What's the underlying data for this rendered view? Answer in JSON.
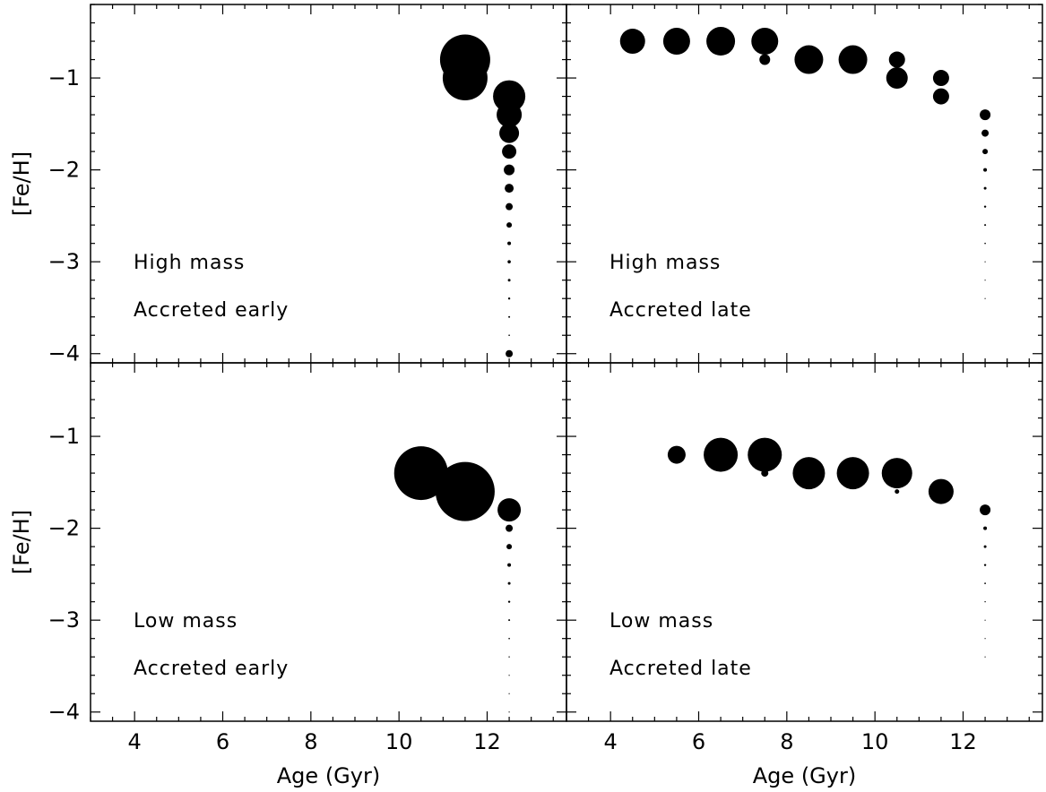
{
  "chart_data": [
    {
      "type": "scatter",
      "panel": "top-left",
      "annotations": [
        "High mass",
        "Accreted early"
      ],
      "xlabel": "",
      "ylabel": "[Fe/H]",
      "xlim": [
        3,
        13.8
      ],
      "ylim": [
        -4.1,
        -0.2
      ],
      "xticks": [
        4,
        6,
        8,
        10,
        12
      ],
      "yticks": [
        -1,
        -2,
        -3,
        -4
      ],
      "points": [
        {
          "x": 11.5,
          "y": -0.8,
          "size": 28
        },
        {
          "x": 11.5,
          "y": -1.0,
          "size": 25
        },
        {
          "x": 12.5,
          "y": -1.2,
          "size": 18
        },
        {
          "x": 12.5,
          "y": -1.4,
          "size": 14
        },
        {
          "x": 12.5,
          "y": -1.6,
          "size": 11
        },
        {
          "x": 12.5,
          "y": -1.8,
          "size": 8
        },
        {
          "x": 12.5,
          "y": -2.0,
          "size": 6
        },
        {
          "x": 12.5,
          "y": -2.2,
          "size": 5
        },
        {
          "x": 12.5,
          "y": -2.4,
          "size": 4
        },
        {
          "x": 12.5,
          "y": -2.6,
          "size": 3
        },
        {
          "x": 12.5,
          "y": -2.8,
          "size": 2
        },
        {
          "x": 12.5,
          "y": -3.0,
          "size": 1.8
        },
        {
          "x": 12.5,
          "y": -3.2,
          "size": 1.5
        },
        {
          "x": 12.5,
          "y": -3.4,
          "size": 1.2
        },
        {
          "x": 12.5,
          "y": -3.6,
          "size": 1
        },
        {
          "x": 12.5,
          "y": -3.8,
          "size": 0.8
        },
        {
          "x": 12.5,
          "y": -4.0,
          "size": 4
        }
      ]
    },
    {
      "type": "scatter",
      "panel": "top-right",
      "annotations": [
        "High mass",
        "Accreted late"
      ],
      "xlabel": "",
      "ylabel": "",
      "xlim": [
        3,
        13.8
      ],
      "ylim": [
        -4.1,
        -0.2
      ],
      "xticks": [
        4,
        6,
        8,
        10,
        12
      ],
      "yticks": [
        -1,
        -2,
        -3,
        -4
      ],
      "points": [
        {
          "x": 4.5,
          "y": -0.6,
          "size": 14
        },
        {
          "x": 5.5,
          "y": -0.6,
          "size": 15
        },
        {
          "x": 6.5,
          "y": -0.6,
          "size": 16
        },
        {
          "x": 7.5,
          "y": -0.6,
          "size": 15
        },
        {
          "x": 7.5,
          "y": -0.8,
          "size": 6
        },
        {
          "x": 8.5,
          "y": -0.8,
          "size": 16
        },
        {
          "x": 9.5,
          "y": -0.8,
          "size": 16
        },
        {
          "x": 10.5,
          "y": -0.8,
          "size": 9
        },
        {
          "x": 10.5,
          "y": -1.0,
          "size": 12
        },
        {
          "x": 11.5,
          "y": -1.0,
          "size": 9
        },
        {
          "x": 11.5,
          "y": -1.2,
          "size": 9
        },
        {
          "x": 12.5,
          "y": -1.4,
          "size": 6
        },
        {
          "x": 12.5,
          "y": -1.6,
          "size": 4
        },
        {
          "x": 12.5,
          "y": -1.8,
          "size": 3
        },
        {
          "x": 12.5,
          "y": -2.0,
          "size": 2
        },
        {
          "x": 12.5,
          "y": -2.2,
          "size": 1.5
        },
        {
          "x": 12.5,
          "y": -2.4,
          "size": 1.2
        },
        {
          "x": 12.5,
          "y": -2.6,
          "size": 1
        },
        {
          "x": 12.5,
          "y": -2.8,
          "size": 0.8
        },
        {
          "x": 12.5,
          "y": -3.0,
          "size": 0.6
        },
        {
          "x": 12.5,
          "y": -3.2,
          "size": 0.5
        },
        {
          "x": 12.5,
          "y": -3.4,
          "size": 0.5
        }
      ]
    },
    {
      "type": "scatter",
      "panel": "bottom-left",
      "annotations": [
        "Low mass",
        "Accreted early"
      ],
      "xlabel": "Age (Gyr)",
      "ylabel": "[Fe/H]",
      "xlim": [
        3,
        13.8
      ],
      "ylim": [
        -4.1,
        -0.2
      ],
      "xticks": [
        4,
        6,
        8,
        10,
        12
      ],
      "yticks": [
        -1,
        -2,
        -3,
        -4
      ],
      "points": [
        {
          "x": 10.5,
          "y": -1.4,
          "size": 30
        },
        {
          "x": 11.5,
          "y": -1.4,
          "size": 10
        },
        {
          "x": 11.5,
          "y": -1.6,
          "size": 33
        },
        {
          "x": 12.5,
          "y": -1.8,
          "size": 13
        },
        {
          "x": 12.5,
          "y": -2.0,
          "size": 4
        },
        {
          "x": 12.5,
          "y": -2.2,
          "size": 3
        },
        {
          "x": 12.5,
          "y": -2.4,
          "size": 2
        },
        {
          "x": 12.5,
          "y": -2.6,
          "size": 1.5
        },
        {
          "x": 12.5,
          "y": -2.8,
          "size": 1.2
        },
        {
          "x": 12.5,
          "y": -3.0,
          "size": 1
        },
        {
          "x": 12.5,
          "y": -3.2,
          "size": 0.8
        },
        {
          "x": 12.5,
          "y": -3.4,
          "size": 0.7
        },
        {
          "x": 12.5,
          "y": -3.6,
          "size": 0.6
        },
        {
          "x": 12.5,
          "y": -3.8,
          "size": 0.5
        },
        {
          "x": 12.5,
          "y": -4.0,
          "size": 0.5
        }
      ]
    },
    {
      "type": "scatter",
      "panel": "bottom-right",
      "annotations": [
        "Low mass",
        "Accreted late"
      ],
      "xlabel": "Age (Gyr)",
      "ylabel": "",
      "xlim": [
        3,
        13.8
      ],
      "ylim": [
        -4.1,
        -0.2
      ],
      "xticks": [
        4,
        6,
        8,
        10,
        12
      ],
      "yticks": [
        -1,
        -2,
        -3,
        -4
      ],
      "points": [
        {
          "x": 5.5,
          "y": -1.2,
          "size": 10
        },
        {
          "x": 6.5,
          "y": -1.2,
          "size": 19
        },
        {
          "x": 7.5,
          "y": -1.2,
          "size": 19
        },
        {
          "x": 7.5,
          "y": -1.4,
          "size": 4
        },
        {
          "x": 8.5,
          "y": -1.4,
          "size": 18
        },
        {
          "x": 9.5,
          "y": -1.4,
          "size": 18
        },
        {
          "x": 10.5,
          "y": -1.4,
          "size": 17
        },
        {
          "x": 10.5,
          "y": -1.6,
          "size": 2.5
        },
        {
          "x": 11.5,
          "y": -1.6,
          "size": 14
        },
        {
          "x": 12.5,
          "y": -1.8,
          "size": 6
        },
        {
          "x": 12.5,
          "y": -2.0,
          "size": 2
        },
        {
          "x": 12.5,
          "y": -2.2,
          "size": 1.5
        },
        {
          "x": 12.5,
          "y": -2.4,
          "size": 1.2
        },
        {
          "x": 12.5,
          "y": -2.6,
          "size": 0.9
        },
        {
          "x": 12.5,
          "y": -2.8,
          "size": 0.7
        },
        {
          "x": 12.5,
          "y": -3.0,
          "size": 0.6
        },
        {
          "x": 12.5,
          "y": -3.2,
          "size": 0.5
        },
        {
          "x": 12.5,
          "y": -3.4,
          "size": 0.5
        }
      ]
    }
  ]
}
